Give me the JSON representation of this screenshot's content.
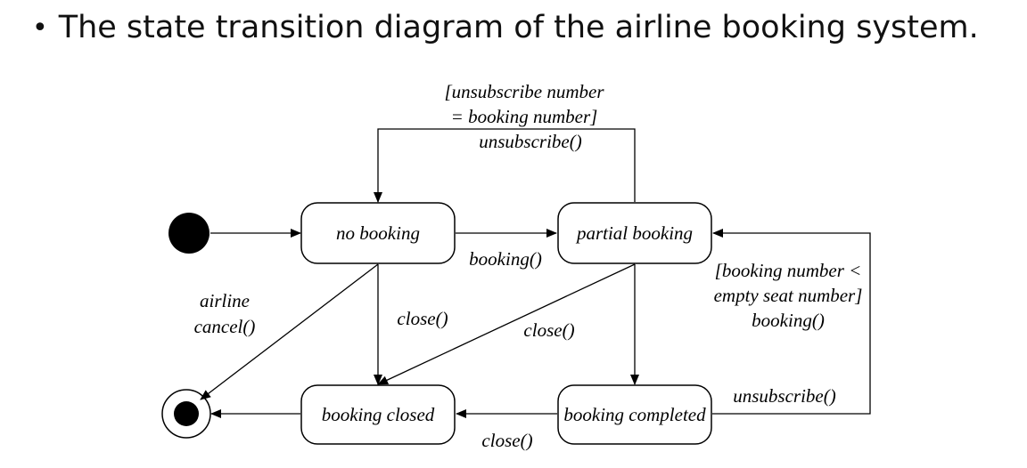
{
  "header": {
    "bullet": "•",
    "title": "The state transition diagram of the airline booking system."
  },
  "states": {
    "no_booking": "no booking",
    "partial_booking": "partial booking",
    "booking_closed": "booking closed",
    "booking_completed": "booking completed"
  },
  "transitions": {
    "top_loop": [
      "[unsubscribe number",
      "= booking number]",
      "unsubscribe()"
    ],
    "booking": "booking()",
    "airline_cancel": [
      "airline",
      "cancel()"
    ],
    "close_no_booking": "close()",
    "close_partial": "close()",
    "right_loop": [
      "[booking number <",
      "empty seat number]",
      "booking()"
    ],
    "unsubscribe_completed": "unsubscribe()",
    "close_completed": "close()"
  }
}
